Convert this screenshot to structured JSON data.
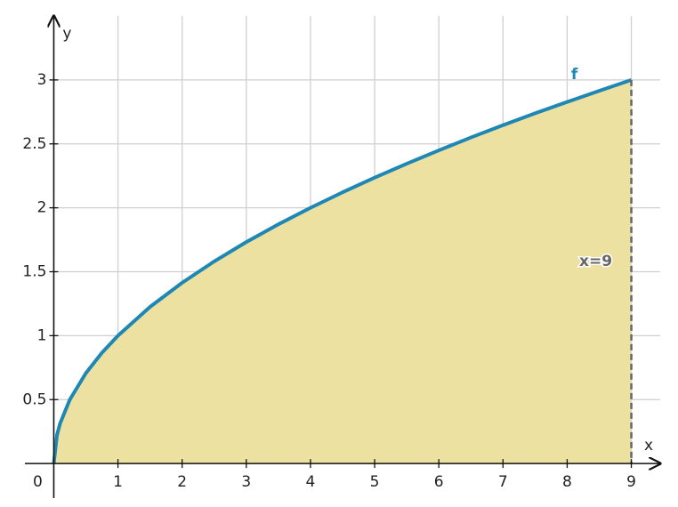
{
  "chart_data": {
    "type": "area",
    "x_label": "x",
    "y_label": "y",
    "x": [
      0,
      0.05,
      0.1,
      0.25,
      0.5,
      0.75,
      1,
      1.5,
      2,
      2.5,
      3,
      3.5,
      4,
      4.5,
      5,
      5.5,
      6,
      6.5,
      7,
      7.5,
      8,
      8.5,
      9
    ],
    "series": [
      {
        "name": "f",
        "color": "#1f87b3",
        "fill": "#ede1a2",
        "values": [
          0,
          0.224,
          0.316,
          0.5,
          0.707,
          0.866,
          1,
          1.225,
          1.414,
          1.581,
          1.732,
          1.871,
          2,
          2.121,
          2.236,
          2.345,
          2.449,
          2.55,
          2.646,
          2.739,
          2.828,
          2.915,
          3
        ]
      }
    ],
    "vline": {
      "x": 9,
      "label": "x=9",
      "color": "#666666"
    },
    "xlim": [
      -0.45,
      9.45
    ],
    "ylim": [
      -0.34,
      3.5
    ],
    "xticks": [
      0,
      1,
      2,
      3,
      4,
      5,
      6,
      7,
      8,
      9
    ],
    "yticks": [
      0.5,
      1,
      1.5,
      2,
      2.5,
      3
    ],
    "grid": true
  }
}
